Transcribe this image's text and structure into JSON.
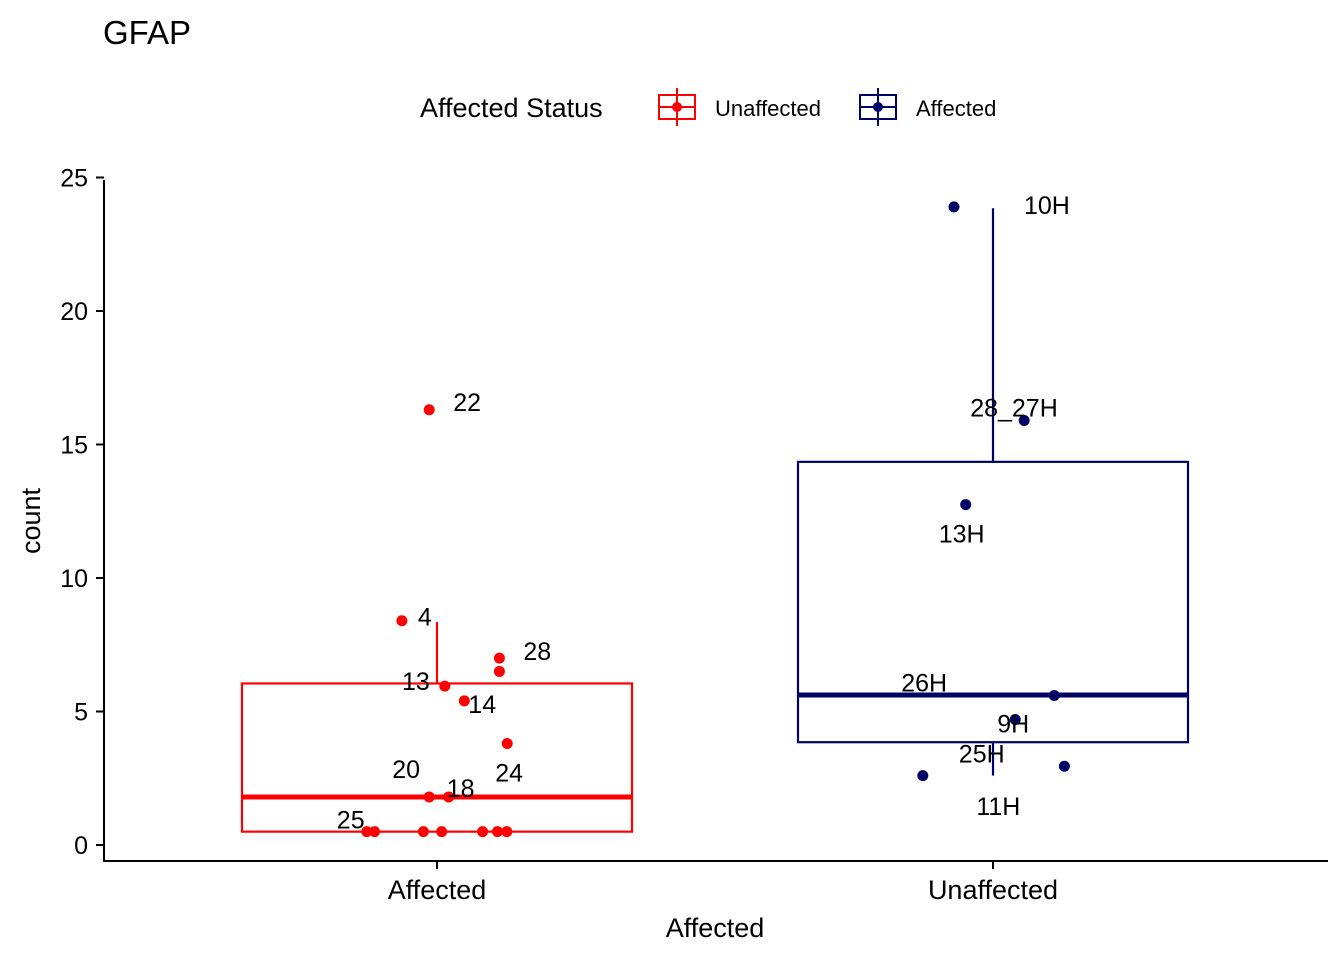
{
  "chart_data": {
    "type": "boxplot",
    "title": "GFAP",
    "xlabel": "Affected",
    "ylabel": "count",
    "ylim": [
      -0.6,
      25
    ],
    "yticks": [
      0,
      5,
      10,
      15,
      20,
      25
    ],
    "categories": [
      "Affected",
      "Unaffected"
    ],
    "legend": {
      "title": "Affected Status",
      "position": "top",
      "entries": [
        {
          "label": "Unaffected",
          "color": "#ff0000"
        },
        {
          "label": "Affected",
          "color": "#000066"
        }
      ]
    },
    "boxes": [
      {
        "category": "Affected",
        "group": "Unaffected",
        "color": "#ff0000",
        "q1": 0.5,
        "median": 1.8,
        "q3": 6.05,
        "whisker_low": 0.5,
        "whisker_high": 8.35
      },
      {
        "category": "Unaffected",
        "group": "Affected",
        "color": "#000066",
        "q1": 3.85,
        "median": 5.62,
        "q3": 14.35,
        "whisker_low": 2.6,
        "whisker_high": 23.85
      }
    ],
    "points": [
      {
        "category": "Affected",
        "group": "Unaffected",
        "label": "22",
        "y": 16.3,
        "jitter": -0.02
      },
      {
        "category": "Affected",
        "group": "Unaffected",
        "label": "4",
        "y": 8.4,
        "jitter": -0.09
      },
      {
        "category": "Affected",
        "group": "Unaffected",
        "label": "28",
        "y": 7.0,
        "jitter": 0.16
      },
      {
        "category": "Affected",
        "group": "Unaffected",
        "label": "",
        "y": 6.5,
        "jitter": 0.16
      },
      {
        "category": "Affected",
        "group": "Unaffected",
        "label": "13",
        "y": 5.95,
        "jitter": 0.02
      },
      {
        "category": "Affected",
        "group": "Unaffected",
        "label": "14",
        "y": 5.4,
        "jitter": 0.07
      },
      {
        "category": "Affected",
        "group": "Unaffected",
        "label": "24",
        "y": 3.8,
        "jitter": 0.18
      },
      {
        "category": "Affected",
        "group": "Unaffected",
        "label": "20",
        "y": 1.8,
        "jitter": -0.02
      },
      {
        "category": "Affected",
        "group": "Unaffected",
        "label": "18",
        "y": 1.8,
        "jitter": 0.03
      },
      {
        "category": "Affected",
        "group": "Unaffected",
        "label": "25",
        "y": 0.5,
        "jitter": -0.18
      },
      {
        "category": "Affected",
        "group": "Unaffected",
        "label": "",
        "y": 0.5,
        "jitter": -0.16
      },
      {
        "category": "Affected",
        "group": "Unaffected",
        "label": "",
        "y": 0.5,
        "jitter": -0.035
      },
      {
        "category": "Affected",
        "group": "Unaffected",
        "label": "",
        "y": 0.5,
        "jitter": 0.012
      },
      {
        "category": "Affected",
        "group": "Unaffected",
        "label": "",
        "y": 0.5,
        "jitter": 0.117
      },
      {
        "category": "Affected",
        "group": "Unaffected",
        "label": "",
        "y": 0.5,
        "jitter": 0.155
      },
      {
        "category": "Affected",
        "group": "Unaffected",
        "label": "",
        "y": 0.5,
        "jitter": 0.179
      },
      {
        "category": "Unaffected",
        "group": "Affected",
        "label": "10H",
        "y": 23.9,
        "jitter": -0.1
      },
      {
        "category": "Unaffected",
        "group": "Affected",
        "label": "28_27H",
        "y": 15.9,
        "jitter": 0.08
      },
      {
        "category": "Unaffected",
        "group": "Affected",
        "label": "13H",
        "y": 12.75,
        "jitter": -0.07
      },
      {
        "category": "Unaffected",
        "group": "Affected",
        "label": "26H",
        "y": 5.6,
        "jitter": 0.157
      },
      {
        "category": "Unaffected",
        "group": "Affected",
        "label": "9H",
        "y": 4.7,
        "jitter": 0.057
      },
      {
        "category": "Unaffected",
        "group": "Affected",
        "label": "25H",
        "y": 2.6,
        "jitter": -0.18
      },
      {
        "category": "Unaffected",
        "group": "Affected",
        "label": "11H",
        "y": 2.95,
        "jitter": 0.183
      }
    ]
  }
}
